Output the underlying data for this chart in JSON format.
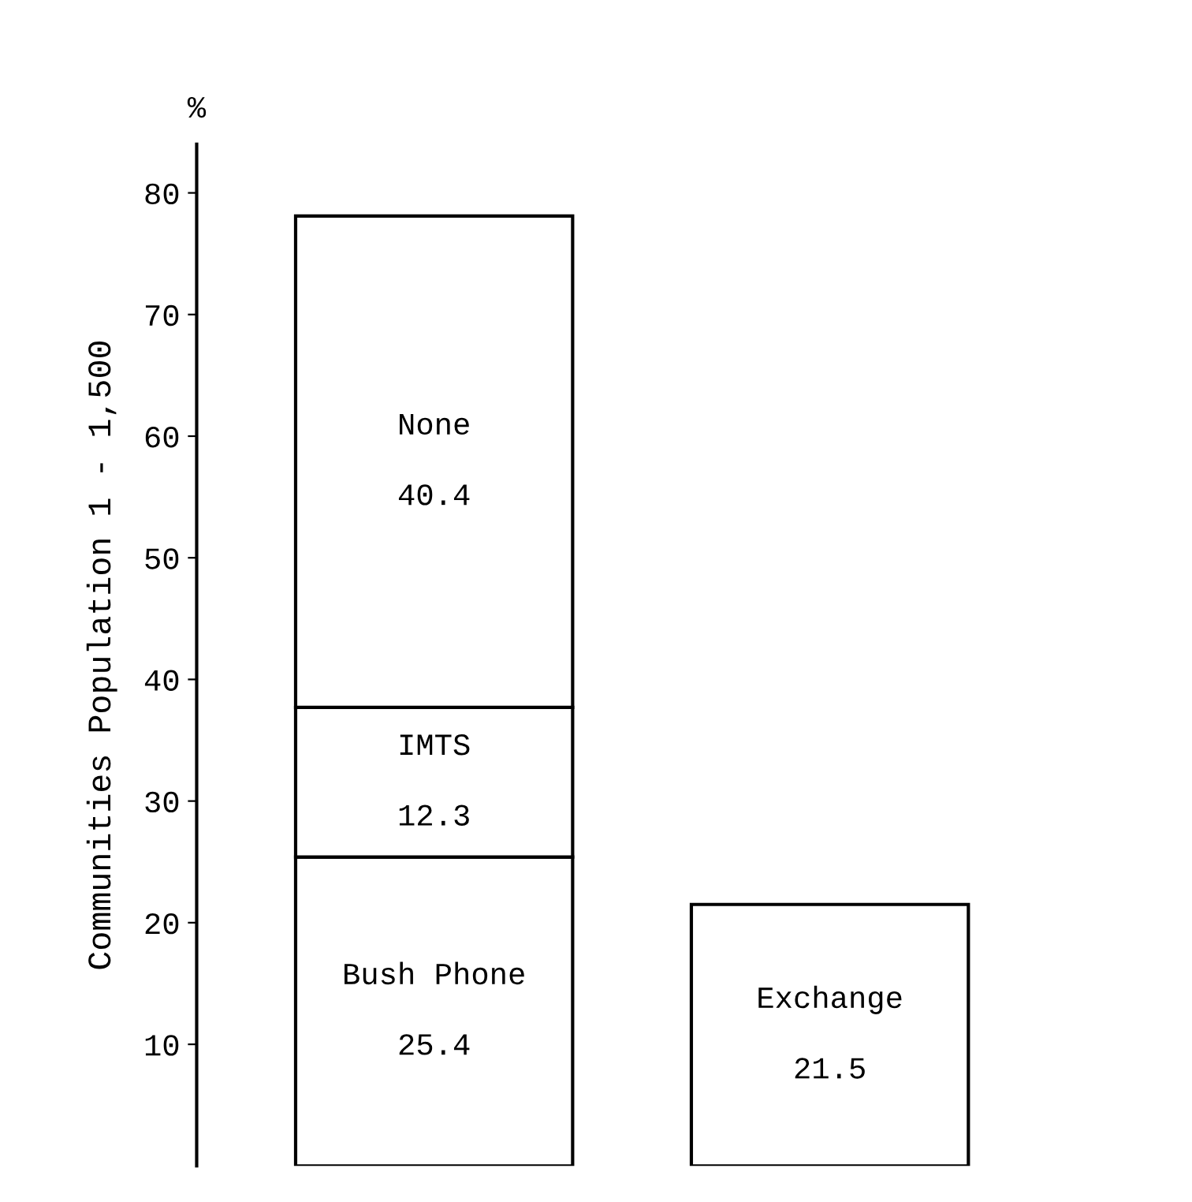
{
  "chart_data": {
    "type": "bar",
    "stacked": true,
    "ylabel": "Communities Population 1 - 1,500",
    "annotations": [
      "%"
    ],
    "categories": [
      null,
      null
    ],
    "series": [
      {
        "name": "Bush Phone",
        "color": "#ffffff",
        "values": [
          25.4,
          null
        ]
      },
      {
        "name": "IMTS",
        "color": "#ffffff",
        "values": [
          12.3,
          null
        ]
      },
      {
        "name": "None",
        "color": "#ffffff",
        "values": [
          40.4,
          null
        ]
      },
      {
        "name": "Exchange",
        "color": "#ffffff",
        "values": [
          null,
          21.5
        ]
      }
    ],
    "ylim": [
      0,
      84
    ],
    "yticks": [
      10,
      20,
      30,
      40,
      50,
      60,
      70,
      80
    ],
    "tick_labels": "y",
    "data_labels": true,
    "grid": false,
    "legend": false
  }
}
